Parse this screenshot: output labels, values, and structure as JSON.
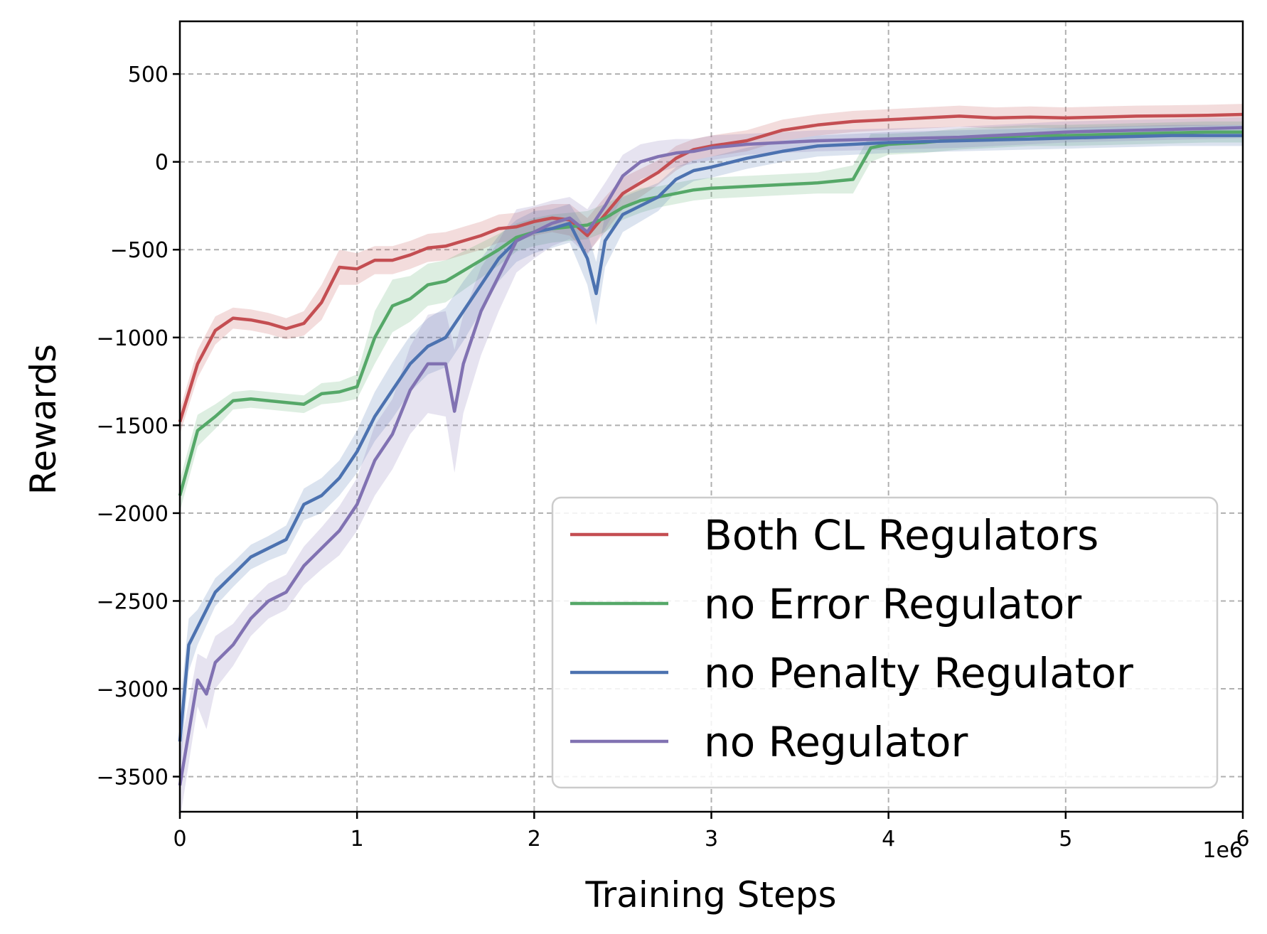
{
  "chart_data": {
    "type": "line",
    "title": "",
    "xlabel": "Training Steps",
    "ylabel": "Rewards",
    "x_offset_label": "1e6",
    "xlim": [
      0,
      6
    ],
    "ylim": [
      -3700,
      800
    ],
    "xticks": [
      0,
      1,
      2,
      3,
      4,
      5,
      6
    ],
    "xtick_labels": [
      "0",
      "1",
      "2",
      "3",
      "4",
      "5",
      "6"
    ],
    "yticks": [
      500,
      0,
      -500,
      -1000,
      -1500,
      -2000,
      -2500,
      -3000,
      -3500
    ],
    "ytick_labels": [
      "500",
      "0",
      "−500",
      "−1000",
      "−1500",
      "−2000",
      "−2500",
      "−3000",
      "−3500"
    ],
    "grid": true,
    "legend_position": "lower-right",
    "series": [
      {
        "name": "Both CL Regulators",
        "color": "#c44e52",
        "x": [
          0,
          0.1,
          0.2,
          0.3,
          0.4,
          0.5,
          0.6,
          0.7,
          0.8,
          0.9,
          1.0,
          1.1,
          1.2,
          1.3,
          1.4,
          1.5,
          1.6,
          1.7,
          1.8,
          1.9,
          2.0,
          2.1,
          2.2,
          2.3,
          2.4,
          2.5,
          2.6,
          2.7,
          2.8,
          2.9,
          3.0,
          3.2,
          3.4,
          3.6,
          3.8,
          4.0,
          4.2,
          4.4,
          4.6,
          4.8,
          5.0,
          5.2,
          5.4,
          5.6,
          5.8,
          6.0
        ],
        "y": [
          -1480,
          -1150,
          -960,
          -890,
          -900,
          -920,
          -950,
          -920,
          -800,
          -600,
          -610,
          -560,
          -560,
          -530,
          -490,
          -480,
          -450,
          -420,
          -380,
          -370,
          -340,
          -320,
          -330,
          -420,
          -300,
          -180,
          -120,
          -60,
          20,
          70,
          90,
          120,
          180,
          210,
          230,
          240,
          250,
          260,
          250,
          255,
          250,
          255,
          260,
          262,
          265,
          270
        ],
        "band": [
          70,
          80,
          80,
          60,
          60,
          60,
          60,
          70,
          100,
          100,
          90,
          80,
          80,
          80,
          80,
          80,
          80,
          80,
          80,
          80,
          80,
          80,
          90,
          100,
          100,
          90,
          80,
          70,
          70,
          60,
          60,
          60,
          60,
          60,
          60,
          60,
          60,
          60,
          60,
          60,
          60,
          60,
          60,
          60,
          60,
          60
        ]
      },
      {
        "name": "no Error Regulator",
        "color": "#55a868",
        "x": [
          0,
          0.1,
          0.2,
          0.3,
          0.4,
          0.5,
          0.6,
          0.7,
          0.8,
          0.9,
          1.0,
          1.1,
          1.2,
          1.3,
          1.4,
          1.5,
          1.6,
          1.7,
          1.8,
          1.9,
          2.0,
          2.1,
          2.2,
          2.3,
          2.4,
          2.5,
          2.6,
          2.7,
          2.8,
          2.9,
          3.0,
          3.2,
          3.4,
          3.6,
          3.8,
          3.9,
          4.0,
          4.2,
          4.4,
          4.6,
          4.8,
          5.0,
          5.2,
          5.4,
          5.6,
          5.8,
          6.0
        ],
        "y": [
          -1900,
          -1530,
          -1450,
          -1360,
          -1350,
          -1360,
          -1370,
          -1380,
          -1320,
          -1310,
          -1280,
          -1000,
          -820,
          -780,
          -700,
          -680,
          -620,
          -560,
          -500,
          -430,
          -400,
          -380,
          -370,
          -360,
          -320,
          -260,
          -220,
          -200,
          -180,
          -160,
          -150,
          -140,
          -130,
          -120,
          -100,
          80,
          100,
          110,
          130,
          140,
          150,
          150,
          155,
          160,
          165,
          170,
          170
        ],
        "band": [
          90,
          90,
          70,
          50,
          50,
          50,
          50,
          50,
          60,
          60,
          70,
          150,
          150,
          130,
          120,
          120,
          110,
          100,
          90,
          80,
          80,
          80,
          80,
          80,
          80,
          70,
          70,
          60,
          60,
          60,
          60,
          60,
          60,
          60,
          80,
          80,
          60,
          60,
          60,
          60,
          60,
          60,
          60,
          60,
          60,
          60,
          60
        ]
      },
      {
        "name": "no Penalty Regulator",
        "color": "#4c72b0",
        "x": [
          0,
          0.05,
          0.1,
          0.2,
          0.3,
          0.4,
          0.5,
          0.6,
          0.7,
          0.8,
          0.9,
          1.0,
          1.1,
          1.2,
          1.3,
          1.4,
          1.5,
          1.6,
          1.7,
          1.8,
          1.9,
          2.0,
          2.1,
          2.2,
          2.3,
          2.35,
          2.4,
          2.5,
          2.6,
          2.7,
          2.8,
          2.9,
          3.0,
          3.2,
          3.4,
          3.6,
          3.8,
          4.0,
          4.2,
          4.4,
          4.6,
          4.8,
          5.0,
          5.2,
          5.4,
          5.6,
          5.8,
          6.0
        ],
        "y": [
          -3300,
          -2750,
          -2650,
          -2450,
          -2350,
          -2250,
          -2200,
          -2150,
          -1950,
          -1900,
          -1800,
          -1650,
          -1450,
          -1300,
          -1150,
          -1050,
          -1000,
          -850,
          -700,
          -550,
          -450,
          -400,
          -380,
          -350,
          -550,
          -750,
          -450,
          -300,
          -250,
          -200,
          -100,
          -50,
          -30,
          20,
          60,
          90,
          100,
          110,
          115,
          120,
          125,
          130,
          135,
          140,
          145,
          150,
          150,
          150
        ],
        "band": [
          200,
          150,
          100,
          80,
          70,
          70,
          70,
          80,
          90,
          100,
          100,
          120,
          140,
          160,
          160,
          160,
          170,
          170,
          150,
          130,
          120,
          120,
          110,
          110,
          150,
          180,
          150,
          100,
          90,
          80,
          70,
          60,
          60,
          60,
          60,
          60,
          60,
          60,
          60,
          60,
          60,
          60,
          60,
          60,
          60,
          60,
          60,
          60
        ]
      },
      {
        "name": "no Regulator",
        "color": "#8172b2",
        "x": [
          0,
          0.1,
          0.15,
          0.2,
          0.3,
          0.4,
          0.5,
          0.6,
          0.7,
          0.8,
          0.9,
          1.0,
          1.1,
          1.2,
          1.3,
          1.4,
          1.5,
          1.55,
          1.6,
          1.7,
          1.8,
          1.9,
          2.0,
          2.1,
          2.2,
          2.3,
          2.4,
          2.5,
          2.6,
          2.7,
          2.8,
          2.9,
          3.0,
          3.2,
          3.4,
          3.6,
          3.8,
          4.0,
          4.2,
          4.4,
          4.6,
          4.8,
          5.0,
          5.2,
          5.4,
          5.6,
          5.8,
          6.0
        ],
        "y": [
          -3550,
          -2950,
          -3030,
          -2850,
          -2750,
          -2600,
          -2500,
          -2450,
          -2300,
          -2200,
          -2100,
          -1950,
          -1700,
          -1550,
          -1300,
          -1150,
          -1150,
          -1420,
          -1150,
          -850,
          -650,
          -450,
          -400,
          -350,
          -320,
          -400,
          -250,
          -80,
          0,
          30,
          50,
          60,
          80,
          100,
          110,
          120,
          125,
          130,
          135,
          140,
          150,
          160,
          170,
          175,
          180,
          185,
          190,
          195
        ],
        "band": [
          200,
          150,
          200,
          150,
          120,
          100,
          100,
          100,
          110,
          120,
          140,
          150,
          200,
          200,
          250,
          280,
          300,
          350,
          280,
          250,
          200,
          180,
          150,
          130,
          120,
          130,
          130,
          120,
          100,
          90,
          80,
          70,
          70,
          60,
          60,
          60,
          60,
          60,
          60,
          60,
          60,
          60,
          60,
          60,
          60,
          60,
          60,
          60
        ]
      }
    ]
  }
}
